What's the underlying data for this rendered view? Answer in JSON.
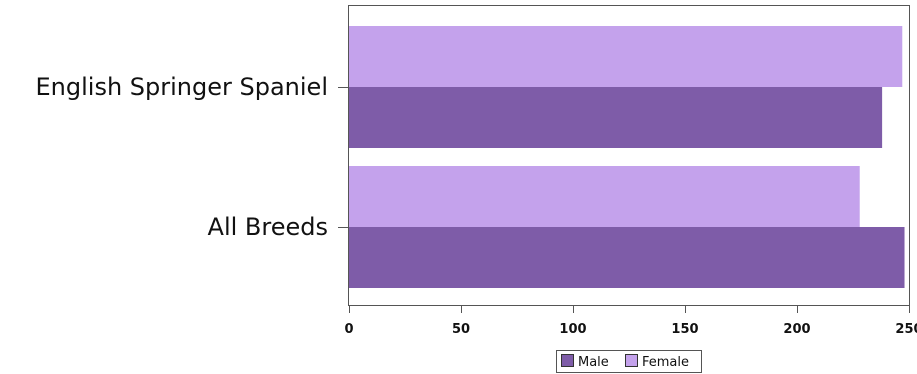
{
  "chart_data": {
    "type": "bar",
    "orientation": "horizontal",
    "categories": [
      "English Springer Spaniel",
      "All Breeds"
    ],
    "series": [
      {
        "name": "Female",
        "values": [
          247,
          228
        ],
        "color": "#c4a2ec"
      },
      {
        "name": "Male",
        "values": [
          238,
          248
        ],
        "color": "#7e5ca8"
      }
    ],
    "xlim": [
      0,
      250
    ],
    "xticks": [
      0,
      50,
      100,
      150,
      200,
      250
    ],
    "title": "",
    "xlabel": "",
    "ylabel": "",
    "grid": false,
    "legend": {
      "placement": "bottom-center",
      "entries": [
        {
          "name": "Male",
          "color": "#7e5ca8"
        },
        {
          "name": "Female",
          "color": "#c4a2ec"
        }
      ]
    }
  }
}
